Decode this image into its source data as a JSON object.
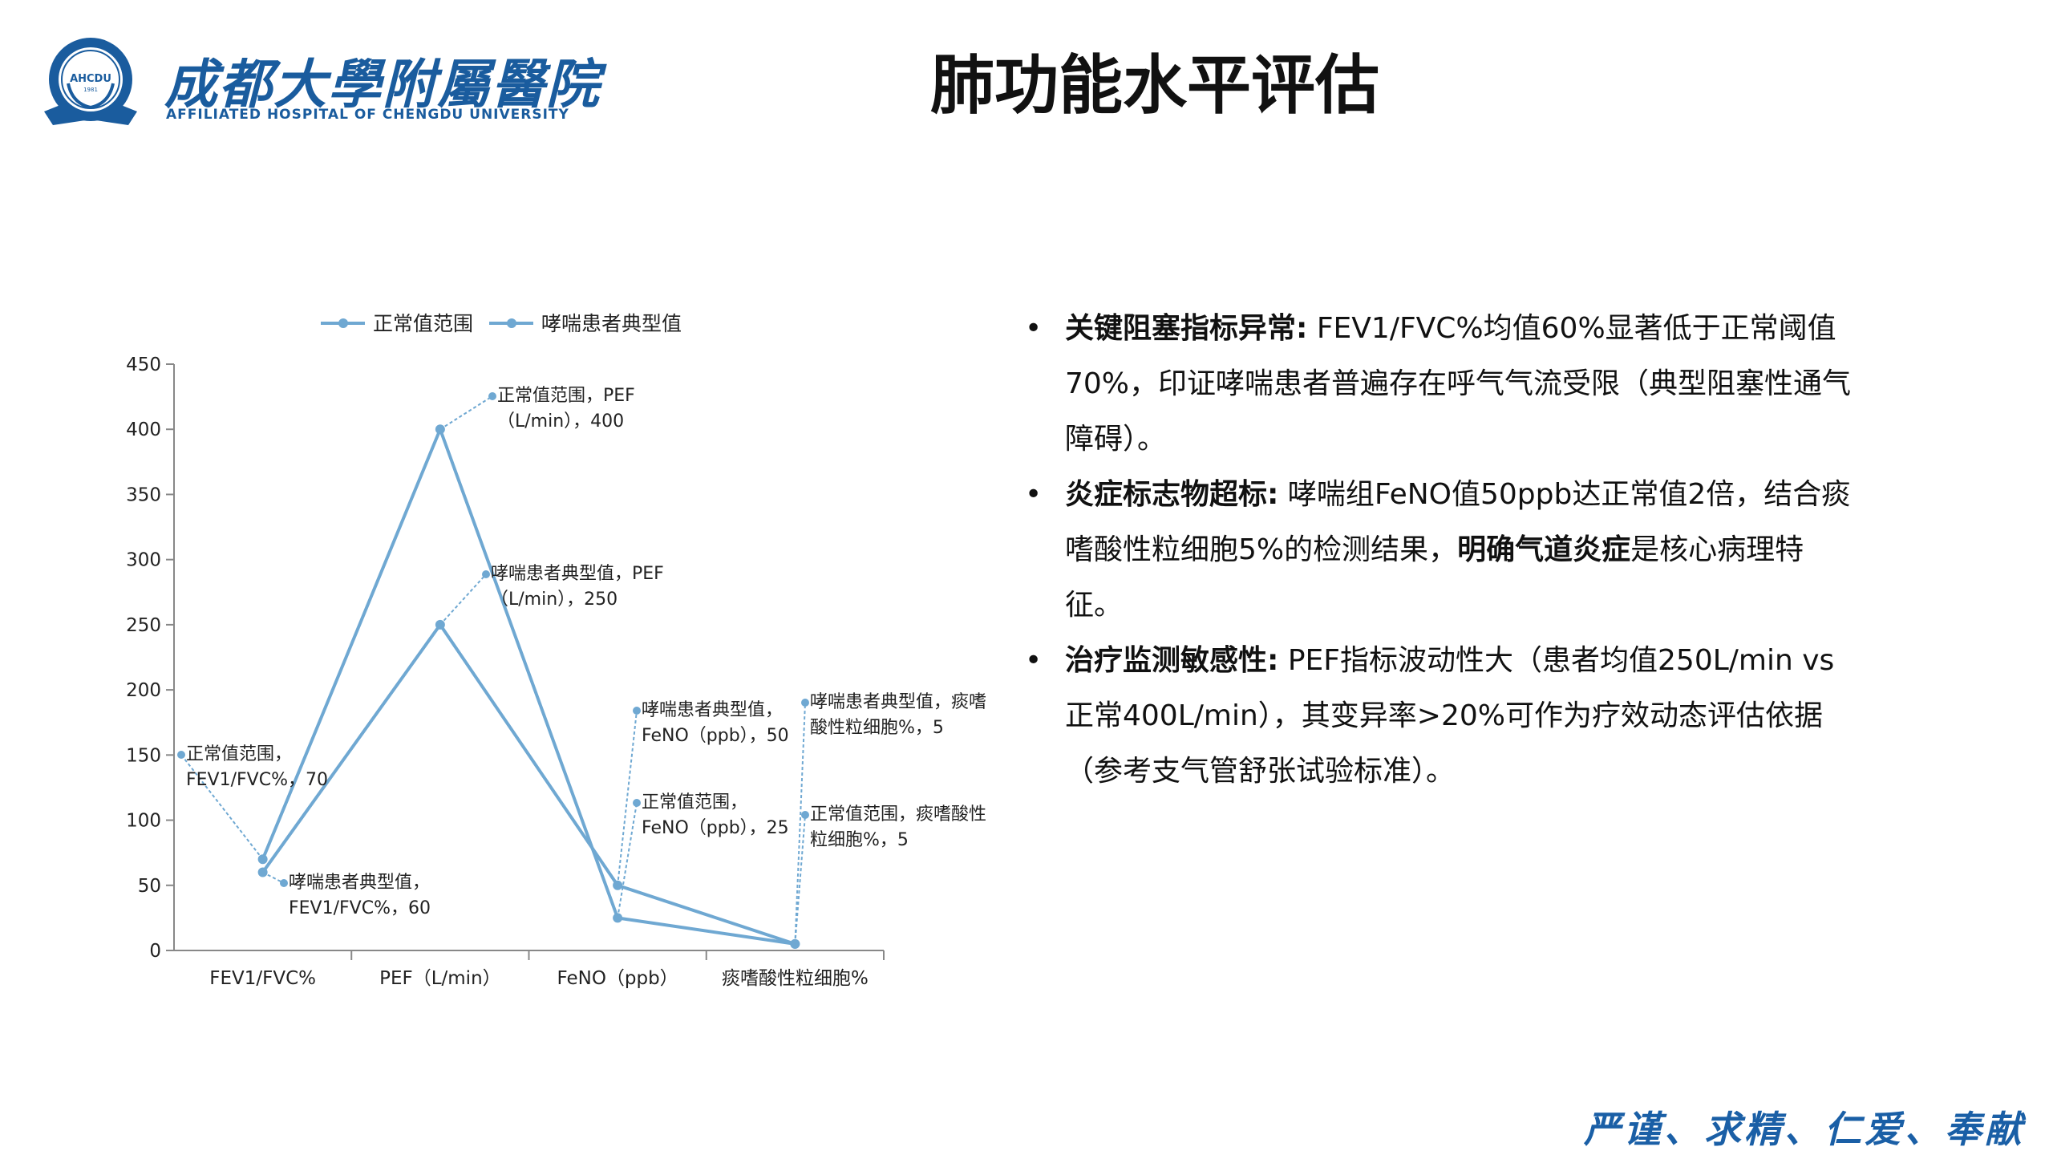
{
  "header": {
    "logo_cn": "成都大學附屬醫院",
    "logo_en": "AFFILIATED HOSPITAL OF CHENGDU UNIVERSITY",
    "logo_emblem_text": "AHCDU",
    "logo_emblem_year": "1981",
    "title": "肺功能水平评估"
  },
  "chart_data": {
    "type": "line",
    "categories": [
      "FEV1/FVC%",
      "PEF（L/min）",
      "FeNO（ppb）",
      "痰嗜酸性粒细胞%"
    ],
    "series": [
      {
        "name": "正常值范围",
        "values": [
          70,
          400,
          25,
          5
        ],
        "labels": [
          "正常值范围，FEV1/FVC%，70",
          "正常值范围，PEF（L/min），400",
          "正常值范围，FeNO（ppb），25",
          "正常值范围，痰嗜酸性粒细胞%，5"
        ]
      },
      {
        "name": "哮喘患者典型值",
        "values": [
          60,
          250,
          50,
          5
        ],
        "labels": [
          "哮喘患者典型值，FEV1/FVC%，60",
          "哮喘患者典型值，PEF（L/min），250",
          "哮喘患者典型值，FeNO（ppb），50",
          "哮喘患者典型值，痰嗜酸性粒细胞%，5"
        ]
      }
    ],
    "yticks": [
      "0",
      "50",
      "100",
      "150",
      "200",
      "250",
      "300",
      "350",
      "400",
      "450"
    ],
    "ylim": [
      0,
      450
    ],
    "legend_position": "top",
    "grid": false,
    "line_color": "#6fa8d2"
  },
  "bullets": [
    {
      "bold": "关键阻塞指标异常:",
      "text": " FEV1/FVC%均值60%显著低于正常阈值70%，印证哮喘患者普遍存在呼气气流受限（典型阻塞性通气障碍）。"
    },
    {
      "bold": "炎症标志物超标:",
      "text": " 哮喘组FeNO值50ppb达正常值2倍，结合痰嗜酸性粒细胞5%的检测结果，",
      "bold2": "明确气道炎症",
      "text2": "是核心病理特征。"
    },
    {
      "bold": "治疗监测敏感性:",
      "text": " PEF指标波动性大（患者均值250L/min vs 正常400L/min），其变异率>20%可作为疗效动态评估依据（参考支气管舒张试验标准）。"
    }
  ],
  "footer": {
    "motto": "严谨、求精、仁爱、奉献"
  },
  "colors": {
    "brand": "#1a5c9e",
    "series": "#6fa8d2"
  }
}
